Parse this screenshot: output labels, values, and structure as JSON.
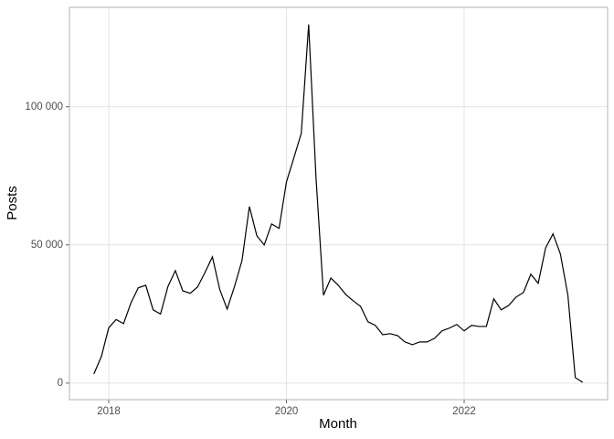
{
  "chart_data": {
    "type": "line",
    "x_label": "Month",
    "y_label": "Posts",
    "x": [
      2017.833,
      2017.917,
      2018.0,
      2018.083,
      2018.167,
      2018.25,
      2018.333,
      2018.417,
      2018.5,
      2018.583,
      2018.667,
      2018.75,
      2018.833,
      2018.917,
      2019.0,
      2019.083,
      2019.167,
      2019.25,
      2019.333,
      2019.417,
      2019.5,
      2019.583,
      2019.667,
      2019.75,
      2019.833,
      2019.917,
      2020.0,
      2020.083,
      2020.167,
      2020.25,
      2020.333,
      2020.417,
      2020.5,
      2020.583,
      2020.667,
      2020.75,
      2020.833,
      2020.917,
      2021.0,
      2021.083,
      2021.167,
      2021.25,
      2021.333,
      2021.417,
      2021.5,
      2021.583,
      2021.667,
      2021.75,
      2021.833,
      2021.917,
      2022.0,
      2022.083,
      2022.167,
      2022.25,
      2022.333,
      2022.417,
      2022.5,
      2022.583,
      2022.667,
      2022.75,
      2022.833,
      2022.917,
      2023.0,
      2023.083,
      2023.167,
      2023.25,
      2023.333
    ],
    "series": [
      {
        "color": "#000000",
        "values": [
          3300,
          9600,
          20000,
          23000,
          21500,
          29000,
          34500,
          35400,
          26500,
          25000,
          35000,
          40700,
          33400,
          32500,
          34800,
          40000,
          45700,
          33800,
          26800,
          35100,
          44400,
          63900,
          53300,
          50000,
          57600,
          56000,
          72800,
          81500,
          90400,
          129800,
          74200,
          31800,
          38000,
          35400,
          32100,
          29800,
          27800,
          22200,
          20900,
          17500,
          17900,
          17200,
          14900,
          13900,
          14900,
          14900,
          16200,
          18900,
          19900,
          21200,
          18900,
          20900,
          20500,
          20500,
          30500,
          26500,
          28100,
          31100,
          32800,
          39400,
          36100,
          49000,
          54000,
          46700,
          31800,
          2000,
          300
        ]
      }
    ],
    "xlim": [
      2017.558,
      2023.614
    ],
    "xticks": [
      2018,
      2020,
      2022
    ],
    "ylim": [
      -6000,
      136000
    ],
    "yticks": [
      0,
      {
        "value": 50000,
        "label": "50 000"
      },
      {
        "value": 100000,
        "label": "100 000"
      }
    ],
    "grid": true
  }
}
